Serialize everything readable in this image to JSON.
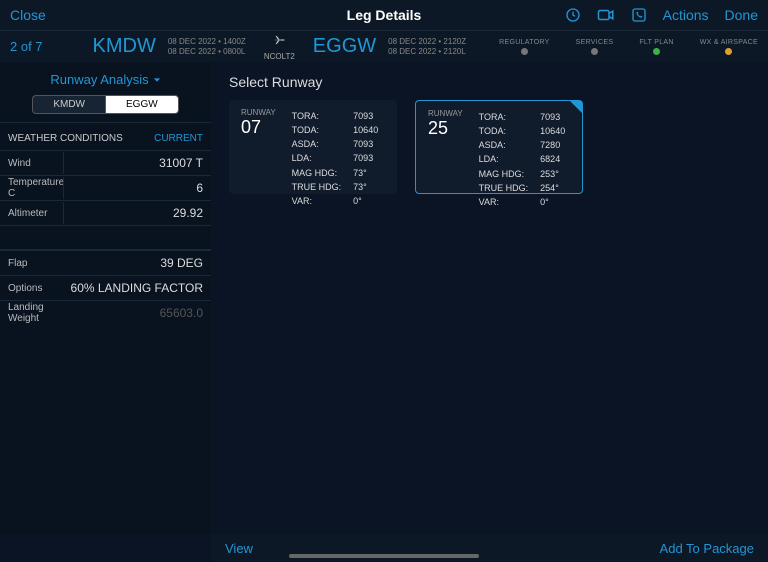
{
  "header": {
    "close": "Close",
    "title": "Leg Details",
    "actions": "Actions",
    "done": "Done"
  },
  "leg": {
    "pager": "2 of 7",
    "origin": "KMDW",
    "origin_times_1": "08 DEC 2022 • 1400Z",
    "origin_times_2": "08 DEC 2022 • 0800L",
    "callsign": "NCOLT2",
    "dest": "EGGW",
    "dest_times_1": "08 DEC 2022 • 2120Z",
    "dest_times_2": "08 DEC 2022 • 2120L",
    "statuses": [
      {
        "label": "REGULATORY",
        "color": "#777"
      },
      {
        "label": "SERVICES",
        "color": "#777"
      },
      {
        "label": "FLT PLAN",
        "color": "#3db04a"
      },
      {
        "label": "WX & AIRSPACE",
        "color": "#e0a030"
      }
    ]
  },
  "sidebar": {
    "analysis_label": "Runway Analysis",
    "seg_a": "KMDW",
    "seg_b": "EGGW",
    "weather_header": "WEATHER CONDITIONS",
    "weather_link": "CURRENT",
    "rows_weather": [
      {
        "label": "Wind",
        "value": "31007 T",
        "divider": true
      },
      {
        "label": "Temperature C",
        "value": "6",
        "divider": true
      },
      {
        "label": "Altimeter",
        "value": "29.92",
        "divider": true
      }
    ],
    "rows_config": [
      {
        "label": "Flap",
        "value": "39 DEG"
      },
      {
        "label": "Options",
        "value": "60% LANDING FACTOR"
      },
      {
        "label": "Landing Weight",
        "value": "65603.0",
        "dim": true
      }
    ]
  },
  "main": {
    "title": "Select Runway",
    "runways": [
      {
        "label": "RUNWAY",
        "num": "07",
        "stats": [
          [
            "TORA:",
            "7093"
          ],
          [
            "TODA:",
            "10640"
          ],
          [
            "ASDA:",
            "7093"
          ],
          [
            "LDA:",
            "7093"
          ],
          [
            "MAG HDG:",
            "73°"
          ],
          [
            "TRUE HDG:",
            "73°"
          ],
          [
            "VAR:",
            "0°"
          ]
        ],
        "selected": false
      },
      {
        "label": "RUNWAY",
        "num": "25",
        "stats": [
          [
            "TORA:",
            "7093"
          ],
          [
            "TODA:",
            "10640"
          ],
          [
            "ASDA:",
            "7280"
          ],
          [
            "LDA:",
            "6824"
          ],
          [
            "MAG HDG:",
            "253°"
          ],
          [
            "TRUE HDG:",
            "254°"
          ],
          [
            "VAR:",
            "0°"
          ]
        ],
        "selected": true
      }
    ],
    "view": "View",
    "add": "Add To Package"
  },
  "colors": {
    "accent": "#2196d4"
  }
}
